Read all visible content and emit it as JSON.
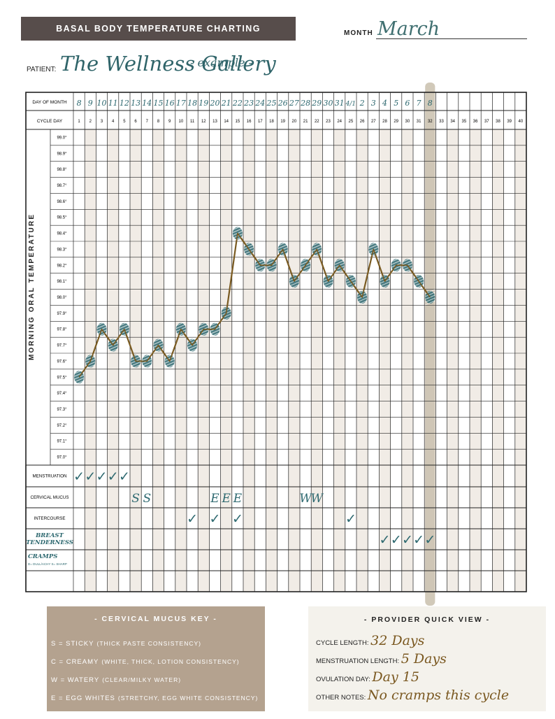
{
  "header": {
    "title": "BASAL BODY TEMPERATURE CHARTING",
    "month_label": "MONTH",
    "month_value": "March",
    "patient_label": "PATIENT:",
    "patient_value": "The Wellness Gallery",
    "patient_suffix": "- example -"
  },
  "table": {
    "day_of_month_label": "DAY OF MONTH",
    "cycle_day_label": "CYCLE DAY",
    "y_axis_label": "MORNING ORAL TEMPERATURE",
    "day_of_month": [
      "8",
      "9",
      "10",
      "11",
      "12",
      "13",
      "14",
      "15",
      "16",
      "17",
      "18",
      "19",
      "20",
      "21",
      "22",
      "23",
      "24",
      "25",
      "26",
      "27",
      "28",
      "29",
      "30",
      "31",
      "4/1",
      "2",
      "3",
      "4",
      "5",
      "6",
      "7",
      "8"
    ],
    "cycle_days": [
      "1",
      "2",
      "3",
      "4",
      "5",
      "6",
      "7",
      "8",
      "9",
      "10",
      "11",
      "12",
      "13",
      "14",
      "15",
      "16",
      "17",
      "18",
      "19",
      "20",
      "21",
      "22",
      "23",
      "24",
      "25",
      "26",
      "27",
      "28",
      "29",
      "30",
      "31",
      "32",
      "33",
      "34",
      "35",
      "36",
      "37",
      "38",
      "39",
      "40"
    ],
    "temperature_ticks": [
      "99.0°",
      "98.9°",
      "98.8°",
      "98.7°",
      "98.6°",
      "98.5°",
      "98.4°",
      "98.3°",
      "98.2°",
      "98.1°",
      "98.0°",
      "97.9°",
      "97.8°",
      "97.7°",
      "97.6°",
      "97.5°",
      "97.4°",
      "97.3°",
      "97.2°",
      "97.1°",
      "97.0°"
    ],
    "row_labels": {
      "menstruation": "MENSTRUATION",
      "cervical_mucus": "CERVICAL MUCUS",
      "intercourse": "INTERCOURSE",
      "breast_tenderness": "BREAST TENDERNESS",
      "cramps": "CRAMPS",
      "cramps_note": "D= DULL/ACHY  S= SHARP"
    },
    "menstruation_days": [
      1,
      2,
      3,
      4,
      5
    ],
    "cervical_mucus": [
      {
        "day": 6,
        "code": "S"
      },
      {
        "day": 7,
        "code": "S"
      },
      {
        "day": 13,
        "code": "E"
      },
      {
        "day": 14,
        "code": "E"
      },
      {
        "day": 15,
        "code": "E"
      },
      {
        "day": 21,
        "code": "W"
      },
      {
        "day": 22,
        "code": "W"
      }
    ],
    "intercourse_days": [
      11,
      13,
      15,
      25
    ],
    "breast_tenderness_days": [
      28,
      29,
      30,
      31,
      32
    ],
    "check_mark": "✓"
  },
  "chart_data": {
    "type": "line",
    "x": [
      1,
      2,
      3,
      4,
      5,
      6,
      7,
      8,
      9,
      10,
      11,
      12,
      13,
      14,
      15,
      16,
      17,
      18,
      19,
      20,
      21,
      22,
      23,
      24,
      25,
      26,
      27,
      28,
      29,
      30,
      31,
      32
    ],
    "series": [
      {
        "values": [
          97.5,
          97.6,
          97.8,
          97.7,
          97.8,
          97.6,
          97.6,
          97.7,
          97.6,
          97.8,
          97.7,
          97.8,
          97.8,
          97.9,
          98.4,
          98.3,
          98.2,
          98.2,
          98.3,
          98.1,
          98.2,
          98.3,
          98.1,
          98.2,
          98.1,
          98.0,
          98.3,
          98.1,
          98.2,
          98.2,
          98.1,
          98.0
        ]
      }
    ],
    "ylim": [
      97.0,
      99.0
    ],
    "xlim": [
      1,
      40
    ],
    "grid": true,
    "line_color": "#7a5b22",
    "marker_color": "#2e6970"
  },
  "mucus_key": {
    "title": "- CERVICAL MUCUS KEY -",
    "items": [
      {
        "code": "S",
        "name": "STICKY",
        "desc": "(THICK PASTE CONSISTENCY)"
      },
      {
        "code": "C",
        "name": "CREAMY",
        "desc": "(WHITE, THICK, LOTION CONSISTENCY)"
      },
      {
        "code": "W",
        "name": "WATERY",
        "desc": "(CLEAR/MILKY WATER)"
      },
      {
        "code": "E",
        "name": "EGG WHITES",
        "desc": "(STRETCHY, EGG WHITE CONSISTENCY)"
      }
    ]
  },
  "provider": {
    "title": "- PROVIDER QUICK VIEW -",
    "rows": [
      {
        "label": "CYCLE LENGTH:",
        "value": "32 Days"
      },
      {
        "label": "MENSTRUATION LENGTH:",
        "value": "5 Days"
      },
      {
        "label": "OVULATION DAY:",
        "value": "Day 15"
      },
      {
        "label": "OTHER NOTES:",
        "value": "No cramps this cycle"
      }
    ]
  },
  "colors": {
    "title_bar": "#574d4b",
    "accent_teal": "#2e6970",
    "line_brown": "#7a5b22",
    "highlight_band": "#c9bfad",
    "shade_cell": "#f1ece6",
    "mucus_box": "#b4a28f",
    "provider_box": "#f4f2ec"
  }
}
